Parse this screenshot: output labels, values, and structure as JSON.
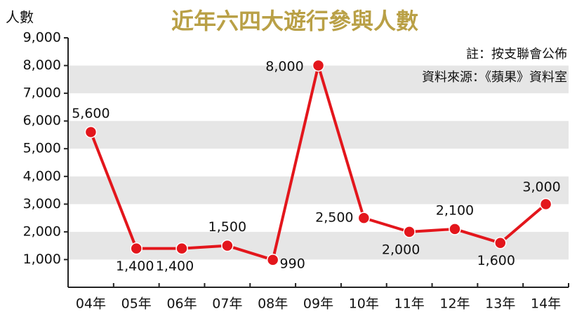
{
  "chart_data": {
    "type": "line",
    "title": "近年六四大遊行參與人數",
    "y_label": "人數",
    "annotations": [
      "註：按支聯會公佈",
      "資料來源：《蘋果》資料室"
    ],
    "categories": [
      "04年",
      "05年",
      "06年",
      "07年",
      "08年",
      "09年",
      "10年",
      "11年",
      "12年",
      "13年",
      "14年"
    ],
    "series": [
      {
        "color": "#e3161c",
        "values": [
          5600,
          1400,
          1400,
          1500,
          990,
          8000,
          2500,
          2000,
          2100,
          1600,
          3000
        ],
        "value_labels": [
          "5,600",
          "1,400",
          "1,400",
          "1,500",
          "990",
          "8,000",
          "2,500",
          "2,000",
          "2,100",
          "1,600",
          "3,000"
        ]
      }
    ],
    "ylim": [
      0,
      9000
    ],
    "yticks": [
      {
        "value": 1000,
        "label": "1,000"
      },
      {
        "value": 2000,
        "label": "2,000"
      },
      {
        "value": 3000,
        "label": "3,000"
      },
      {
        "value": 4000,
        "label": "4,000"
      },
      {
        "value": 5000,
        "label": "5,000"
      },
      {
        "value": 6000,
        "label": "6,000"
      },
      {
        "value": 7000,
        "label": "7,000"
      },
      {
        "value": 8000,
        "label": "8,000"
      },
      {
        "value": 9000,
        "label": "9,000"
      }
    ],
    "grid": true
  }
}
